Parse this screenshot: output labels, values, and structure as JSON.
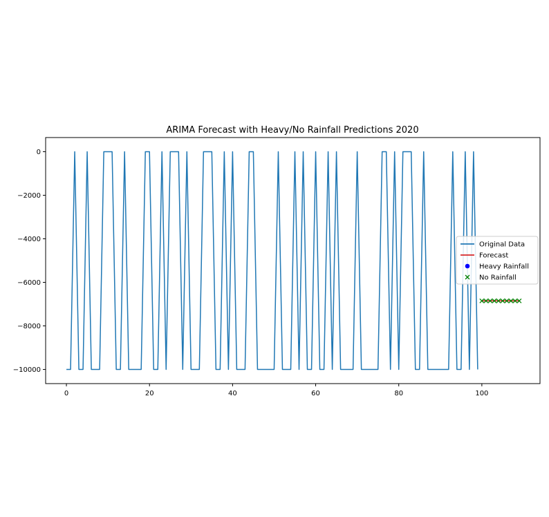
{
  "chart_data": {
    "type": "line",
    "title": "ARIMA Forecast with Heavy/No Rainfall Predictions 2020",
    "xlabel": "",
    "ylabel": "",
    "xlim": [
      -5,
      114
    ],
    "ylim": [
      -10650,
      650
    ],
    "xticks": [
      0,
      20,
      40,
      60,
      80,
      100
    ],
    "xtick_labels": [
      "0",
      "20",
      "40",
      "60",
      "80",
      "100"
    ],
    "yticks": [
      0,
      -2000,
      -4000,
      -6000,
      -8000,
      -10000
    ],
    "ytick_labels": [
      "0",
      "−2000",
      "−4000",
      "−6000",
      "−8000",
      "−10000"
    ],
    "grid": false,
    "legend": {
      "placement": "center-right",
      "entries": [
        {
          "label": "Original Data",
          "kind": "line",
          "color": "#1f77b4"
        },
        {
          "label": "Forecast",
          "kind": "line",
          "color": "#d62728"
        },
        {
          "label": "Heavy Rainfall",
          "kind": "circle",
          "color": "#0000ff"
        },
        {
          "label": "No Rainfall",
          "kind": "x",
          "color": "#008000"
        }
      ]
    },
    "series": [
      {
        "name": "Original Data",
        "color": "#1f77b4",
        "x": [
          0,
          1,
          2,
          3,
          4,
          5,
          6,
          7,
          8,
          9,
          10,
          11,
          12,
          13,
          14,
          15,
          16,
          17,
          18,
          19,
          20,
          21,
          22,
          23,
          24,
          25,
          26,
          27,
          28,
          29,
          30,
          31,
          32,
          33,
          34,
          35,
          36,
          37,
          38,
          39,
          40,
          41,
          42,
          43,
          44,
          45,
          46,
          47,
          48,
          49,
          50,
          51,
          52,
          53,
          54,
          55,
          56,
          57,
          58,
          59,
          60,
          61,
          62,
          63,
          64,
          65,
          66,
          67,
          68,
          69,
          70,
          71,
          72,
          73,
          74,
          75,
          76,
          77,
          78,
          79,
          80,
          81,
          82,
          83,
          84,
          85,
          86,
          87,
          88,
          89,
          90,
          91,
          92,
          93,
          94,
          95,
          96,
          97,
          98,
          99
        ],
        "y": [
          -10000,
          -10000,
          0,
          -10000,
          -10000,
          0,
          -10000,
          -10000,
          -10000,
          0,
          0,
          0,
          -10000,
          -10000,
          0,
          -10000,
          -10000,
          -10000,
          -10000,
          0,
          0,
          -10000,
          -10000,
          0,
          -10000,
          0,
          0,
          0,
          -10000,
          0,
          -10000,
          -10000,
          -10000,
          0,
          0,
          0,
          -10000,
          -10000,
          0,
          -10000,
          0,
          -10000,
          -10000,
          -10000,
          0,
          0,
          -10000,
          -10000,
          -10000,
          -10000,
          -10000,
          0,
          -10000,
          -10000,
          -10000,
          0,
          -10000,
          0,
          -10000,
          -10000,
          0,
          -10000,
          -10000,
          0,
          -10000,
          0,
          -10000,
          -10000,
          -10000,
          -10000,
          0,
          -10000,
          -10000,
          -10000,
          -10000,
          -10000,
          0,
          0,
          -10000,
          0,
          -10000,
          0,
          0,
          0,
          -10000,
          -10000,
          0,
          -10000,
          -10000,
          -10000,
          -10000,
          -10000,
          -10000,
          0,
          -10000,
          -10000,
          0,
          -10000,
          0,
          -10000
        ]
      },
      {
        "name": "Forecast",
        "color": "#d62728",
        "x": [
          100,
          101,
          102,
          103,
          104,
          105,
          106,
          107,
          108,
          109
        ],
        "y": [
          -6850,
          -6850,
          -6850,
          -6850,
          -6850,
          -6850,
          -6850,
          -6850,
          -6850,
          -6850
        ]
      }
    ],
    "markers": [
      {
        "name": "Heavy Rainfall",
        "color": "#0000ff",
        "shape": "circle",
        "x": [],
        "y": []
      },
      {
        "name": "No Rainfall",
        "color": "#008000",
        "shape": "x",
        "x": [
          100,
          101,
          102,
          103,
          104,
          105,
          106,
          107,
          108,
          109
        ],
        "y": [
          -6850,
          -6850,
          -6850,
          -6850,
          -6850,
          -6850,
          -6850,
          -6850,
          -6850,
          -6850
        ]
      }
    ]
  }
}
